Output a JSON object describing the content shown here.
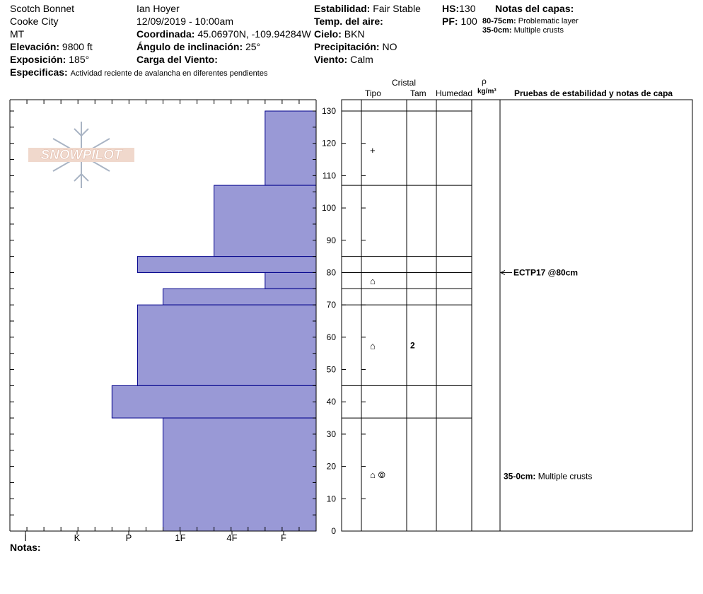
{
  "header": {
    "location": "Scotch Bonnet",
    "city": "Cooke City",
    "state": "MT",
    "elevation_label": "Elevación:",
    "elevation": "9800 ft",
    "aspect_label": "Exposición:",
    "aspect": "185°",
    "specifics_label": "Especificas:",
    "specifics": "Actividad reciente de avalancha en diferentes pendientes",
    "observer": "Ian Hoyer",
    "datetime": "12/09/2019 - 10:00am",
    "coords_label": "Coordinada:",
    "coords": "45.06970N, -109.94284W",
    "slope_label": "Ángulo de inclinación:",
    "slope": "25°",
    "wind_load_label": "Carga del Viento:",
    "wind_load": "",
    "stability_label": "Estabilidad:",
    "stability": "Fair Stable",
    "air_temp_label": "Temp. del aire:",
    "air_temp": "",
    "sky_label": "Cielo:",
    "sky": "BKN",
    "precip_label": "Precipitación:",
    "precip": "NO",
    "wind_label": "Viento:",
    "wind": "Calm",
    "hs_label": "HS:",
    "hs": "130",
    "pf_label": "PF:",
    "pf": "100",
    "layer_notes_title": "Notas del capas:",
    "layer_notes": [
      {
        "range": "80-75cm:",
        "text": "Problematic layer"
      },
      {
        "range": "35-0cm:",
        "text": "Multiple crusts"
      }
    ]
  },
  "logo_text": "SNOWPILOT",
  "column_headers": {
    "crystal": "Cristal",
    "type": "Tipo",
    "size": "Tam",
    "wetness": "Humedad",
    "rho": "ρ",
    "density_unit": "kg/m³",
    "tests": "Pruebas de estabilidad y notas de capa"
  },
  "notes_label": "Notas:",
  "notes": "",
  "colors": {
    "hardness_fill": "#9999d6",
    "hardness_stroke": "#00008b"
  },
  "chart_data": {
    "type": "bar",
    "orientation": "horizontal-step",
    "xlabel": "",
    "ylabel": "",
    "x_categories": [
      "I",
      "K",
      "P",
      "1F",
      "4F",
      "F"
    ],
    "ylim": [
      0,
      130
    ],
    "y_ticks": [
      0,
      10,
      20,
      30,
      40,
      50,
      60,
      70,
      80,
      90,
      100,
      110,
      120,
      130
    ],
    "hardness_scale_max": 6,
    "layers": [
      {
        "top": 130,
        "bottom": 107,
        "hardness": 1.0
      },
      {
        "top": 107,
        "bottom": 85,
        "hardness": 2.0
      },
      {
        "top": 85,
        "bottom": 80,
        "hardness": 3.5
      },
      {
        "top": 80,
        "bottom": 75,
        "hardness": 1.0
      },
      {
        "top": 75,
        "bottom": 70,
        "hardness": 3.0
      },
      {
        "top": 70,
        "bottom": 45,
        "hardness": 3.5
      },
      {
        "top": 45,
        "bottom": 35,
        "hardness": 4.0
      },
      {
        "top": 35,
        "bottom": 0,
        "hardness": 3.0
      }
    ],
    "layer_boundaries": [
      130,
      107,
      85,
      80,
      75,
      70,
      45,
      35
    ],
    "grain_types": [
      {
        "depth": 118,
        "symbol": "+",
        "size": ""
      },
      {
        "depth": 77.5,
        "symbol": "⌂",
        "size": ""
      },
      {
        "depth": 57.5,
        "symbol": "⌂",
        "size": "2"
      },
      {
        "depth": 17.5,
        "symbol": "⌂ ⦾",
        "size": ""
      }
    ],
    "stability_tests": [
      {
        "depth": 80,
        "text": "ECTP17 @80cm"
      }
    ],
    "layer_comments": [
      {
        "depth": 17,
        "range": "35-0cm:",
        "text": "Multiple crusts"
      }
    ]
  }
}
